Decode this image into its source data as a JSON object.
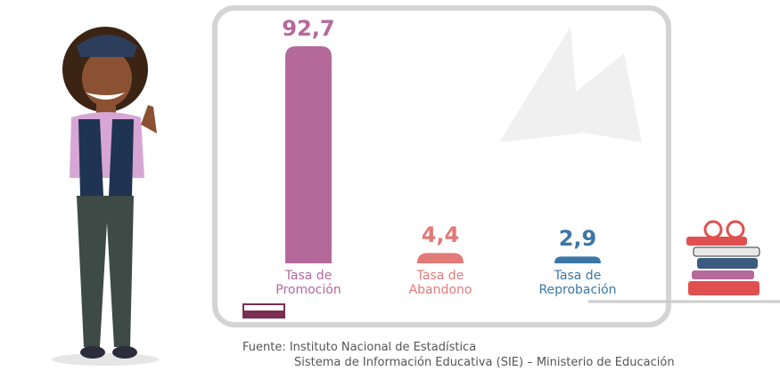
{
  "chart_data": {
    "type": "bar",
    "categories": [
      "Tasa de Promoción",
      "Tasa de Abandono",
      "Tasa de Reprobación"
    ],
    "values": [
      92.7,
      4.4,
      2.9
    ],
    "value_labels": [
      "92,7",
      "4,4",
      "2,9"
    ],
    "colors": [
      "#b5699b",
      "#e27a78",
      "#3b76a6"
    ],
    "source": [
      "Fuente: Instituto Nacional de Estadística",
      "Sistema de Información Educativa (SIE) – Ministerio de Educación"
    ]
  }
}
